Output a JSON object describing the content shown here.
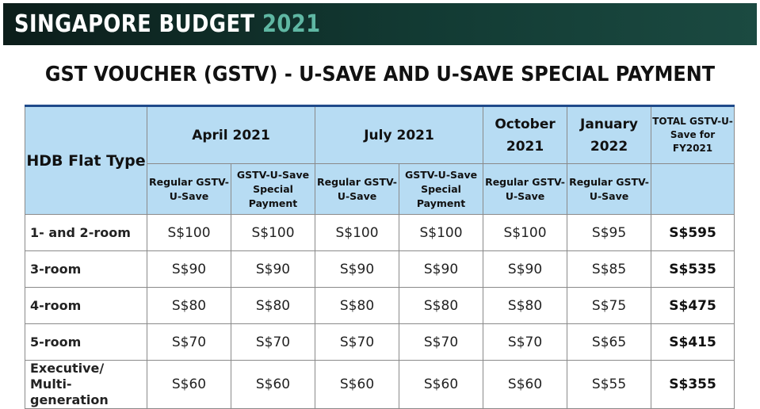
{
  "banner": {
    "title": "SINGAPORE BUDGET",
    "year": "2021"
  },
  "headline": "GST VOUCHER (GSTV) - U-SAVE AND U-SAVE SPECIAL PAYMENT",
  "table": {
    "header": {
      "flat_type": "HDB Flat Type",
      "april": "April 2021",
      "july": "July 2021",
      "october": "October 2021",
      "january": "January 2022",
      "total": "TOTAL GSTV-U-Save for FY2021",
      "regular": "Regular GSTV-U-Save",
      "special": "GSTV-U-Save Special Payment"
    },
    "rows": [
      {
        "type": "1- and 2-room",
        "apr_reg": "S$100",
        "apr_spec": "S$100",
        "jul_reg": "S$100",
        "jul_spec": "S$100",
        "oct_reg": "S$100",
        "jan_reg": "S$95",
        "total": "S$595"
      },
      {
        "type": "3-room",
        "apr_reg": "S$90",
        "apr_spec": "S$90",
        "jul_reg": "S$90",
        "jul_spec": "S$90",
        "oct_reg": "S$90",
        "jan_reg": "S$85",
        "total": "S$535"
      },
      {
        "type": "4-room",
        "apr_reg": "S$80",
        "apr_spec": "S$80",
        "jul_reg": "S$80",
        "jul_spec": "S$80",
        "oct_reg": "S$80",
        "jan_reg": "S$75",
        "total": "S$475"
      },
      {
        "type": "5-room",
        "apr_reg": "S$70",
        "apr_spec": "S$70",
        "jul_reg": "S$70",
        "jul_spec": "S$70",
        "oct_reg": "S$70",
        "jan_reg": "S$65",
        "total": "S$415"
      },
      {
        "type": "Executive/ Multi-generation",
        "apr_reg": "S$60",
        "apr_spec": "S$60",
        "jul_reg": "S$60",
        "jul_spec": "S$60",
        "oct_reg": "S$60",
        "jan_reg": "S$55",
        "total": "S$355"
      }
    ]
  }
}
